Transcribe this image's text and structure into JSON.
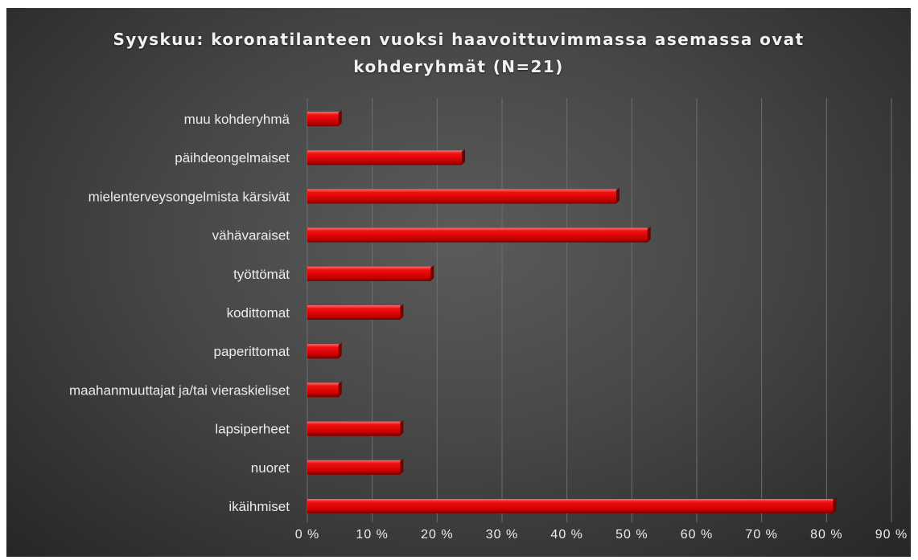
{
  "chart_data": {
    "type": "bar",
    "orientation": "horizontal",
    "title_lines": [
      "Syyskuu: koronatilanteen vuoksi haavoittuvimmassa asemassa ovat",
      "kohderyhmät (N=21)"
    ],
    "categories": [
      "muu kohderyhmä",
      "päihdeongelmaiset",
      "mielenterveysongelmista kärsivät",
      "vähävaraiset",
      "työttömät",
      "kodittomat",
      "paperittomat",
      "maahanmuuttajat ja/tai vieraskieliset",
      "lapsiperheet",
      "nuoret",
      "ikäihmiset"
    ],
    "values": [
      4.8,
      23.8,
      47.6,
      52.4,
      19.0,
      14.3,
      4.8,
      4.8,
      14.3,
      14.3,
      81.0
    ],
    "xlim": [
      0,
      90
    ],
    "ticks": [
      0,
      10,
      20,
      30,
      40,
      50,
      60,
      70,
      80,
      90
    ],
    "tick_labels": [
      "0 %",
      "10 %",
      "20 %",
      "30 %",
      "40 %",
      "50 %",
      "60 %",
      "70 %",
      "80 %",
      "90 %"
    ],
    "grid": true,
    "legend": "none",
    "colors": {
      "bar": "#e00000",
      "bar_light": "#ff5a5a",
      "bar_dark": "#8a0000",
      "grid": "#6e6e6e",
      "text": "#ececec"
    }
  }
}
